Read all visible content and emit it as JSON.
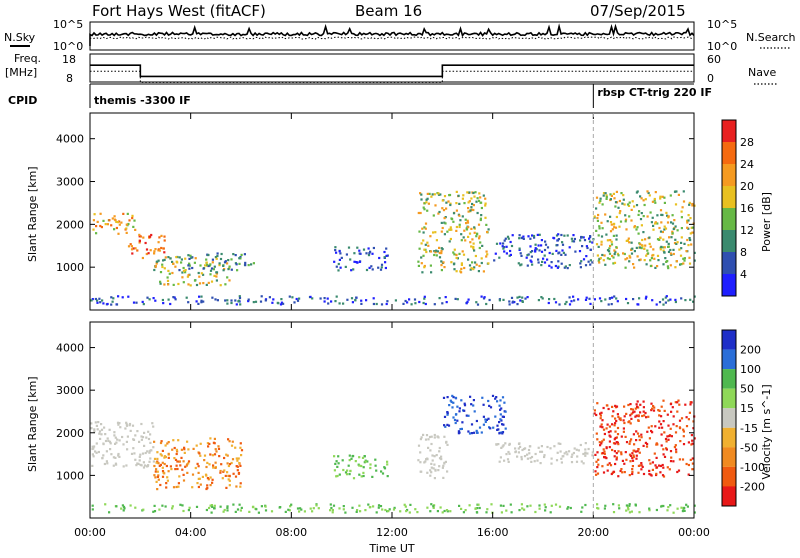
{
  "header": {
    "station": "Fort Hays West (fitACF)",
    "beam": "Beam 16",
    "date": "07/Sep/2015"
  },
  "strip": {
    "nsky_label": "N.Sky",
    "nsearch_label": "N.Search",
    "noise_ticks": [
      "10^5",
      "10^0"
    ],
    "freq_label_line1": "Freq.",
    "freq_label_line2": "[MHz]",
    "freq_ticks": [
      "18",
      "8"
    ],
    "nave_label": "Nave",
    "nave_ticks": [
      "60",
      "0"
    ],
    "cpid_label": "CPID",
    "cpid_segments": [
      {
        "start_hour": 0,
        "label": "themis -3300 IF"
      },
      {
        "start_hour": 20,
        "label": "rbsp CT-trig 220 IF"
      }
    ],
    "freq_steps": [
      {
        "from": 0,
        "to": 2,
        "mhz": 14
      },
      {
        "from": 2,
        "to": 14,
        "mhz": 10
      },
      {
        "from": 14,
        "to": 24,
        "mhz": 14
      }
    ]
  },
  "chart_data": [
    {
      "type": "heatmap",
      "name": "power",
      "ylabel": "Slant Range [km]",
      "ylim": [
        0,
        4600
      ],
      "yticks": [
        "1000",
        "2000",
        "3000",
        "4000"
      ],
      "xlim": [
        "00:00",
        "24:00"
      ],
      "colorbar": {
        "label": "Power [dB]",
        "ticks": [
          "4",
          "8",
          "12",
          "16",
          "20",
          "24",
          "28"
        ],
        "colors": [
          "#1f1fff",
          "#2f4fb0",
          "#3a8a6e",
          "#66b845",
          "#e8c020",
          "#f59a20",
          "#f56a10",
          "#e82020"
        ]
      },
      "regions": [
        {
          "t0": 0.0,
          "t1": 1.8,
          "r0": 1800,
          "r1": 2300,
          "level": "medium-high"
        },
        {
          "t0": 1.5,
          "t1": 3.0,
          "r0": 1200,
          "r1": 1800,
          "level": "high"
        },
        {
          "t0": 2.5,
          "t1": 5.5,
          "r0": 600,
          "r1": 1300,
          "level": "medium"
        },
        {
          "t0": 3.5,
          "t1": 6.5,
          "r0": 950,
          "r1": 1350,
          "level": "low-medium"
        },
        {
          "t0": 9.6,
          "t1": 11.8,
          "r0": 950,
          "r1": 1500,
          "level": "low"
        },
        {
          "t0": 13.0,
          "t1": 15.8,
          "r0": 900,
          "r1": 2800,
          "level": "medium"
        },
        {
          "t0": 16.0,
          "t1": 20.0,
          "r0": 1000,
          "r1": 1800,
          "level": "low"
        },
        {
          "t0": 20.0,
          "t1": 24.0,
          "r0": 1000,
          "r1": 2800,
          "level": "medium"
        },
        {
          "t0": 0.0,
          "t1": 24.0,
          "r0": 150,
          "r1": 350,
          "level": "low"
        }
      ]
    },
    {
      "type": "heatmap",
      "name": "velocity",
      "ylabel": "Slant Range [km]",
      "xlabel": "Time UT",
      "ylim": [
        0,
        4600
      ],
      "yticks": [
        "1000",
        "2000",
        "3000",
        "4000"
      ],
      "xticks": [
        "00:00",
        "04:00",
        "08:00",
        "12:00",
        "16:00",
        "20:00",
        "00:00"
      ],
      "xlim": [
        "00:00",
        "24:00"
      ],
      "colorbar": {
        "label": "Velocity [m s^-1]",
        "ticks": [
          "200",
          "100",
          "50",
          "15",
          "-15",
          "-50",
          "-100",
          "-200"
        ],
        "colors": [
          "#1f2fc8",
          "#2a6ed8",
          "#4fb84f",
          "#8fd858",
          "#c8c8c0",
          "#f0b030",
          "#f08a20",
          "#f05a10",
          "#e81818"
        ]
      },
      "regions": [
        {
          "t0": 0.0,
          "t1": 2.5,
          "r0": 1200,
          "r1": 2300,
          "velocity": "ground"
        },
        {
          "t0": 2.5,
          "t1": 6.0,
          "r0": 700,
          "r1": 1900,
          "velocity": "-50"
        },
        {
          "t0": 9.6,
          "t1": 11.8,
          "r0": 950,
          "r1": 1500,
          "velocity": "50"
        },
        {
          "t0": 13.0,
          "t1": 14.2,
          "r0": 900,
          "r1": 2000,
          "velocity": "ground"
        },
        {
          "t0": 14.0,
          "t1": 16.5,
          "r0": 2000,
          "r1": 2900,
          "velocity": "200"
        },
        {
          "t0": 16.0,
          "t1": 20.0,
          "r0": 1300,
          "r1": 1800,
          "velocity": "ground"
        },
        {
          "t0": 20.0,
          "t1": 24.0,
          "r0": 1000,
          "r1": 2800,
          "velocity": "-200"
        },
        {
          "t0": 0.0,
          "t1": 24.0,
          "r0": 150,
          "r1": 350,
          "velocity": "15"
        }
      ]
    }
  ]
}
